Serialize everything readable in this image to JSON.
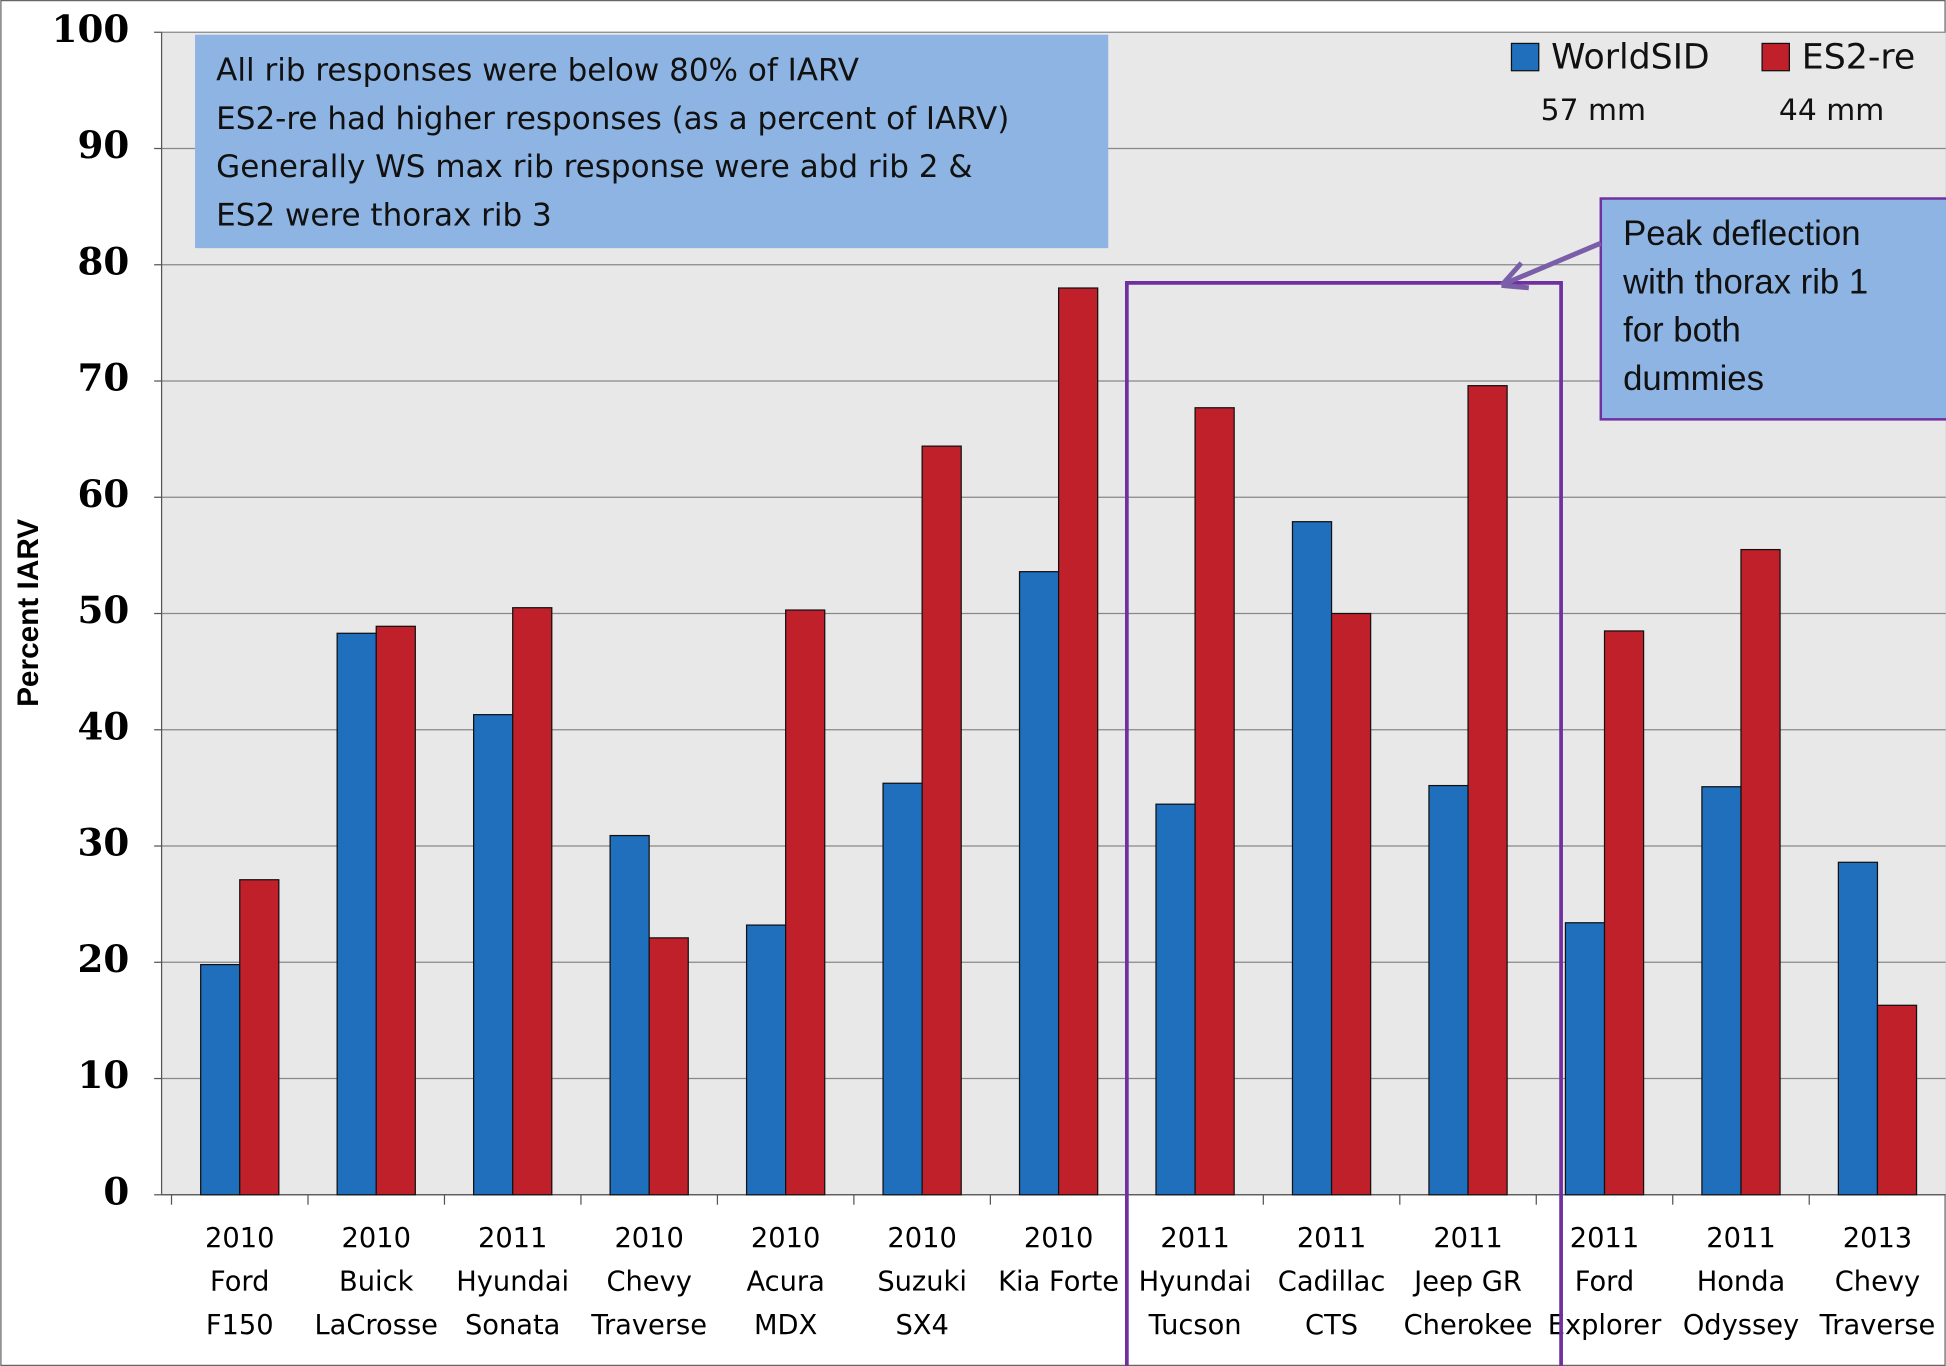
{
  "chart_data": {
    "type": "bar",
    "ylabel": "Percent IARV",
    "categories": [
      [
        "2010",
        "Ford",
        "F150"
      ],
      [
        "2010",
        "Buick",
        "LaCrosse"
      ],
      [
        "2011",
        "Hyundai",
        "Sonata"
      ],
      [
        "2010",
        "Chevy",
        "Traverse"
      ],
      [
        "2010",
        "Acura",
        "MDX"
      ],
      [
        "2010",
        "Suzuki",
        "SX4"
      ],
      [
        "2010",
        "Kia Forte"
      ],
      [
        "2011",
        "Hyundai",
        "Tucson"
      ],
      [
        "2011",
        "Cadillac",
        "CTS"
      ],
      [
        "2011",
        "Jeep GR",
        "Cherokee"
      ],
      [
        "2011",
        "Ford",
        "Explorer"
      ],
      [
        "2011",
        "Honda",
        "Odyssey"
      ],
      [
        "2013",
        "Chevy",
        "Traverse"
      ]
    ],
    "series": [
      {
        "name": "WorldSID",
        "color": "#1f6fbd",
        "values": [
          19.8,
          48.3,
          41.3,
          30.9,
          23.2,
          35.4,
          53.6,
          33.6,
          57.9,
          35.2,
          23.4,
          35.1,
          28.6
        ]
      },
      {
        "name": "ES2-re",
        "color": "#c0202a",
        "values": [
          27.1,
          48.9,
          50.5,
          22.1,
          50.3,
          64.4,
          78.0,
          67.7,
          50.0,
          69.6,
          48.5,
          55.5,
          16.3
        ]
      }
    ],
    "legend_notes": [
      "57 mm",
      "44 mm"
    ],
    "ylim": [
      0,
      100
    ],
    "yticks": [
      0,
      10,
      20,
      30,
      40,
      50,
      60,
      70,
      80,
      90,
      100
    ],
    "grid": true,
    "annotations": {
      "summary": [
        "All rib responses were below 80% of IARV",
        "ES2-re had higher responses (as a percent of IARV)",
        "Generally WS max rib response  were abd rib 2 &",
        "ES2 were thorax rib 3"
      ],
      "peak": [
        "Peak deflection",
        "with thorax rib 1",
        "for both",
        "dummies"
      ]
    }
  }
}
